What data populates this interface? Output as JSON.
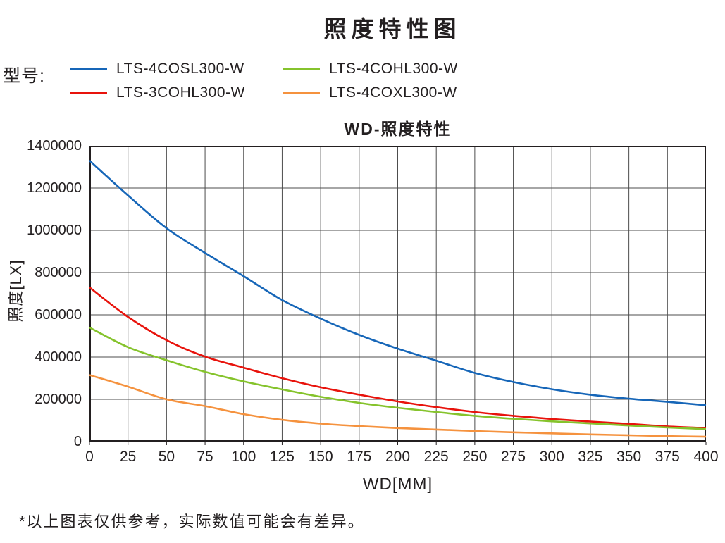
{
  "title": "照度特性图",
  "legend": {
    "label": "型号:"
  },
  "footnote": "*以上图表仅供参考，实际数值可能会有差异。",
  "colors": {
    "text": "#231f20",
    "grid": "#4d4d4d",
    "frame": "#231f20"
  },
  "chart_data": {
    "type": "line",
    "title": "WD-照度特性",
    "xlabel": "WD[MM]",
    "ylabel": "照度[LX]",
    "xlim": [
      0,
      400
    ],
    "ylim": [
      0,
      1400000
    ],
    "x_tick_step": 25,
    "y_tick_step": 200000,
    "grid": true,
    "legend_position": "top-left",
    "x": [
      0,
      25,
      50,
      75,
      100,
      125,
      150,
      175,
      200,
      225,
      250,
      275,
      300,
      325,
      350,
      375,
      400
    ],
    "series": [
      {
        "name": "LTS-4COSL300-W",
        "color": "#1666b8",
        "values": [
          1330000,
          1165000,
          1010000,
          893000,
          783000,
          670000,
          582000,
          505000,
          440000,
          383000,
          325000,
          282000,
          248000,
          222000,
          203000,
          188000,
          172000
        ]
      },
      {
        "name": "LTS-3COHL300-W",
        "color": "#e8130c",
        "values": [
          730000,
          590000,
          480000,
          402000,
          350000,
          300000,
          257000,
          222000,
          190000,
          163000,
          140000,
          122000,
          107000,
          95000,
          84000,
          72000,
          64000
        ]
      },
      {
        "name": "LTS-4COHL300-W",
        "color": "#85c32c",
        "values": [
          540000,
          447000,
          385000,
          330000,
          285000,
          247000,
          212000,
          183000,
          160000,
          140000,
          122000,
          108000,
          96000,
          86000,
          76000,
          67000,
          59000
        ]
      },
      {
        "name": "LTS-4COXL300-W",
        "color": "#f5923e",
        "values": [
          315000,
          260000,
          200000,
          168000,
          130000,
          103000,
          85000,
          73000,
          64000,
          57000,
          50000,
          44000,
          39000,
          34000,
          30000,
          26000,
          23000
        ]
      }
    ]
  }
}
